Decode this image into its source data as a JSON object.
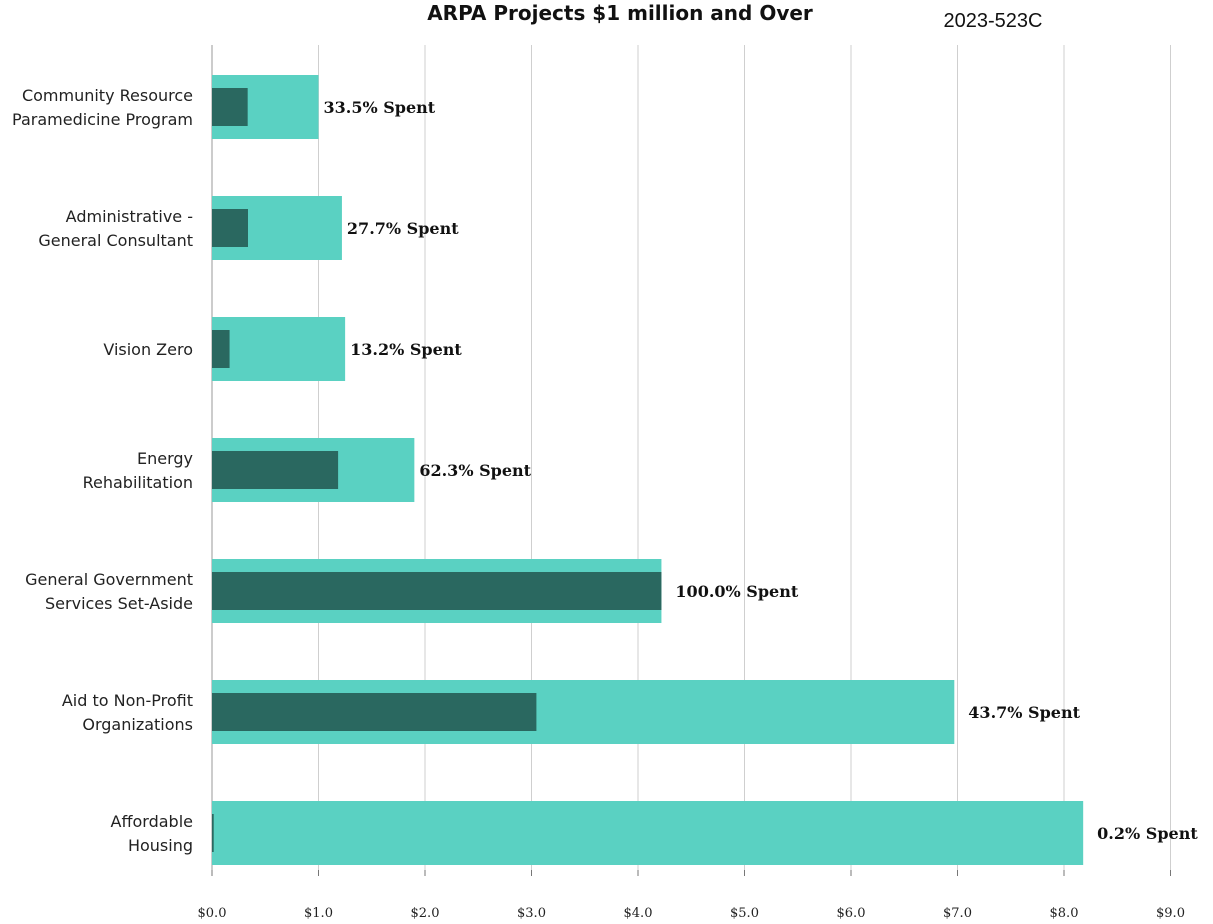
{
  "chart_data": {
    "type": "bar",
    "orientation": "horizontal",
    "title": "ARPA Projects $1 million and Over",
    "subtitle": "2023-523C",
    "xlabel": "",
    "ylabel": "",
    "xlim": [
      0,
      9
    ],
    "x_ticks": [
      "$0.0",
      "$1.0",
      "$2.0",
      "$3.0",
      "$4.0",
      "$5.0",
      "$6.0",
      "$7.0",
      "$8.0",
      "$9.0"
    ],
    "grid": true,
    "categories": [
      [
        "Community Resource",
        "Paramedicine Program"
      ],
      [
        "Administrative -",
        "General Consultant"
      ],
      [
        "Vision Zero"
      ],
      [
        "Energy",
        "Rehabilitation"
      ],
      [
        "General Government",
        "Services Set-Aside"
      ],
      [
        "Aid to Non-Profit",
        "Organizations"
      ],
      [
        "Affordable",
        "Housing"
      ]
    ],
    "series": [
      {
        "values": [
          1.0,
          1.22,
          1.25,
          1.9,
          4.22,
          6.97,
          8.18
        ]
      },
      {
        "values": [
          0.335,
          0.338,
          0.165,
          1.184,
          4.22,
          3.046,
          0.016
        ]
      }
    ],
    "data_labels": [
      "33.5% Spent",
      "27.7% Spent",
      "13.2% Spent",
      "62.3% Spent",
      "100.0% Spent",
      "43.7% Spent",
      "0.2% Spent"
    ],
    "colors": {
      "budget": "#5ad1c2",
      "spent": "#2a6860",
      "grid": "#cfcfcf",
      "baseline": "#999999"
    }
  }
}
